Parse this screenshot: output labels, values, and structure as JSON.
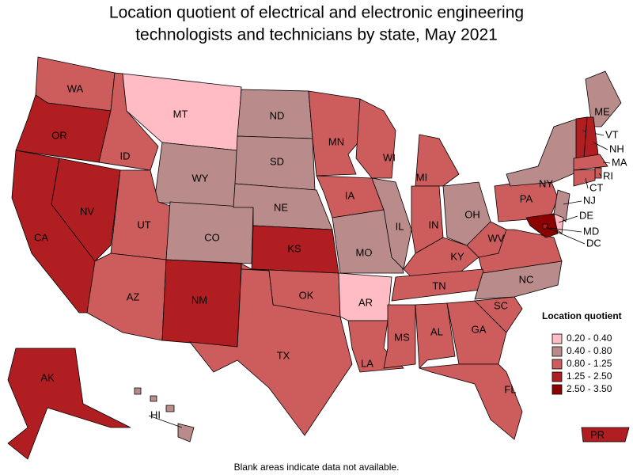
{
  "title": [
    "Location quotient of electrical and electronic engineering",
    "technologists and technicians by state, May 2021"
  ],
  "legend": {
    "title": "Location quotient",
    "items": [
      {
        "label": "0.20 - 0.40",
        "color": "#ffbcc4"
      },
      {
        "label": "0.40 - 0.80",
        "color": "#b98b8b"
      },
      {
        "label": "0.80 - 1.25",
        "color": "#cd5c5c"
      },
      {
        "label": "1.25 - 2.50",
        "color": "#b01e22"
      },
      {
        "label": "2.50 - 3.50",
        "color": "#8b0000"
      }
    ]
  },
  "states": [
    {
      "label": "WA",
      "color": "#cd5c5c"
    },
    {
      "label": "OR",
      "color": "#b01e22"
    },
    {
      "label": "CA",
      "color": "#b01e22"
    },
    {
      "label": "NV",
      "color": "#b01e22"
    },
    {
      "label": "ID",
      "color": "#cd5c5c"
    },
    {
      "label": "MT",
      "color": "#ffbcc4"
    },
    {
      "label": "WY",
      "color": "#b98b8b"
    },
    {
      "label": "UT",
      "color": "#cd5c5c"
    },
    {
      "label": "CO",
      "color": "#b98b8b"
    },
    {
      "label": "AZ",
      "color": "#cd5c5c"
    },
    {
      "label": "NM",
      "color": "#b01e22"
    },
    {
      "label": "ND",
      "color": "#b98b8b"
    },
    {
      "label": "SD",
      "color": "#b98b8b"
    },
    {
      "label": "NE",
      "color": "#b98b8b"
    },
    {
      "label": "KS",
      "color": "#b01e22"
    },
    {
      "label": "OK",
      "color": "#cd5c5c"
    },
    {
      "label": "TX",
      "color": "#cd5c5c"
    },
    {
      "label": "MN",
      "color": "#cd5c5c"
    },
    {
      "label": "IA",
      "color": "#cd5c5c"
    },
    {
      "label": "MO",
      "color": "#b98b8b"
    },
    {
      "label": "AR",
      "color": "#ffbcc4"
    },
    {
      "label": "LA",
      "color": "#cd5c5c"
    },
    {
      "label": "WI",
      "color": "#cd5c5c"
    },
    {
      "label": "IL",
      "color": "#b98b8b"
    },
    {
      "label": "MI",
      "color": "#cd5c5c"
    },
    {
      "label": "IN",
      "color": "#cd5c5c"
    },
    {
      "label": "OH",
      "color": "#b98b8b"
    },
    {
      "label": "KY",
      "color": "#cd5c5c"
    },
    {
      "label": "TN",
      "color": "#cd5c5c"
    },
    {
      "label": "MS",
      "color": "#cd5c5c"
    },
    {
      "label": "AL",
      "color": "#cd5c5c"
    },
    {
      "label": "GA",
      "color": "#cd5c5c"
    },
    {
      "label": "FL",
      "color": "#cd5c5c"
    },
    {
      "label": "SC",
      "color": "#cd5c5c"
    },
    {
      "label": "NC",
      "color": "#b98b8b"
    },
    {
      "label": "WV",
      "color": "#cd5c5c"
    },
    {
      "label": "PA",
      "color": "#cd5c5c"
    },
    {
      "label": "NY",
      "color": "#b98b8b"
    },
    {
      "label": "ME",
      "color": "#b98b8b"
    },
    {
      "label": "VT",
      "color": "#b01e22"
    },
    {
      "label": "NH",
      "color": "#b01e22"
    },
    {
      "label": "MA",
      "color": "#cd5c5c"
    },
    {
      "label": "RI",
      "color": "#cd5c5c"
    },
    {
      "label": "CT",
      "color": "#cd5c5c"
    },
    {
      "label": "NJ",
      "color": "#b98b8b"
    },
    {
      "label": "DE",
      "color": "#ffbcc4"
    },
    {
      "label": "MD",
      "color": "#8b0000"
    },
    {
      "label": "DC",
      "color": "#b01e22"
    },
    {
      "label": "HI",
      "color": "#b98b8b"
    },
    {
      "label": "AK",
      "color": "#b01e22"
    },
    {
      "label": "PR",
      "color": "#b01e22"
    }
  ],
  "va_color": "#cd5c5c",
  "footnote": "Blank areas indicate data not available."
}
